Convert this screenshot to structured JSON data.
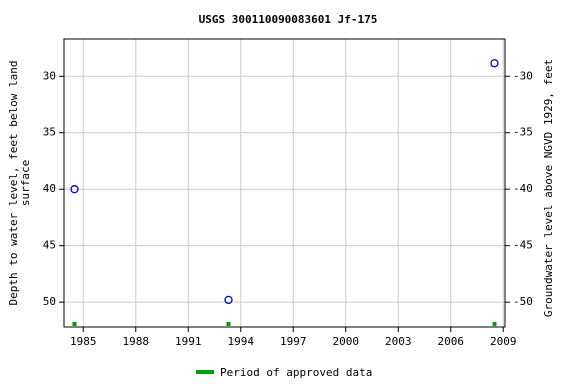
{
  "chart_data": {
    "type": "scatter",
    "title": "USGS 300110090083601 Jf-175",
    "y_label": [
      "Depth to water level, feet below land",
      "surface"
    ],
    "y2_label": "Groundwater level above NGVD 1929, feet",
    "xlim": [
      1983.9,
      2009.1
    ],
    "xticks": [
      1985,
      1988,
      1991,
      1994,
      1997,
      2000,
      2003,
      2006,
      2009
    ],
    "ylim": [
      26.7,
      52.2
    ],
    "y_inverted": true,
    "yticks": [
      30,
      35,
      40,
      45,
      50
    ],
    "y2lim": [
      -52.2,
      -26.7
    ],
    "y2ticks": [
      -30,
      -35,
      -40,
      -45,
      -50
    ],
    "grid": true,
    "series": [
      {
        "color": "#0000cc",
        "x": [
          1984.5,
          1993.3,
          2008.5
        ],
        "values": [
          40.0,
          49.8,
          28.85
        ]
      }
    ],
    "approved": {
      "name": "Period of approved data",
      "color": "#00a000",
      "x": [
        1984.5,
        1993.3,
        2008.5
      ]
    }
  }
}
